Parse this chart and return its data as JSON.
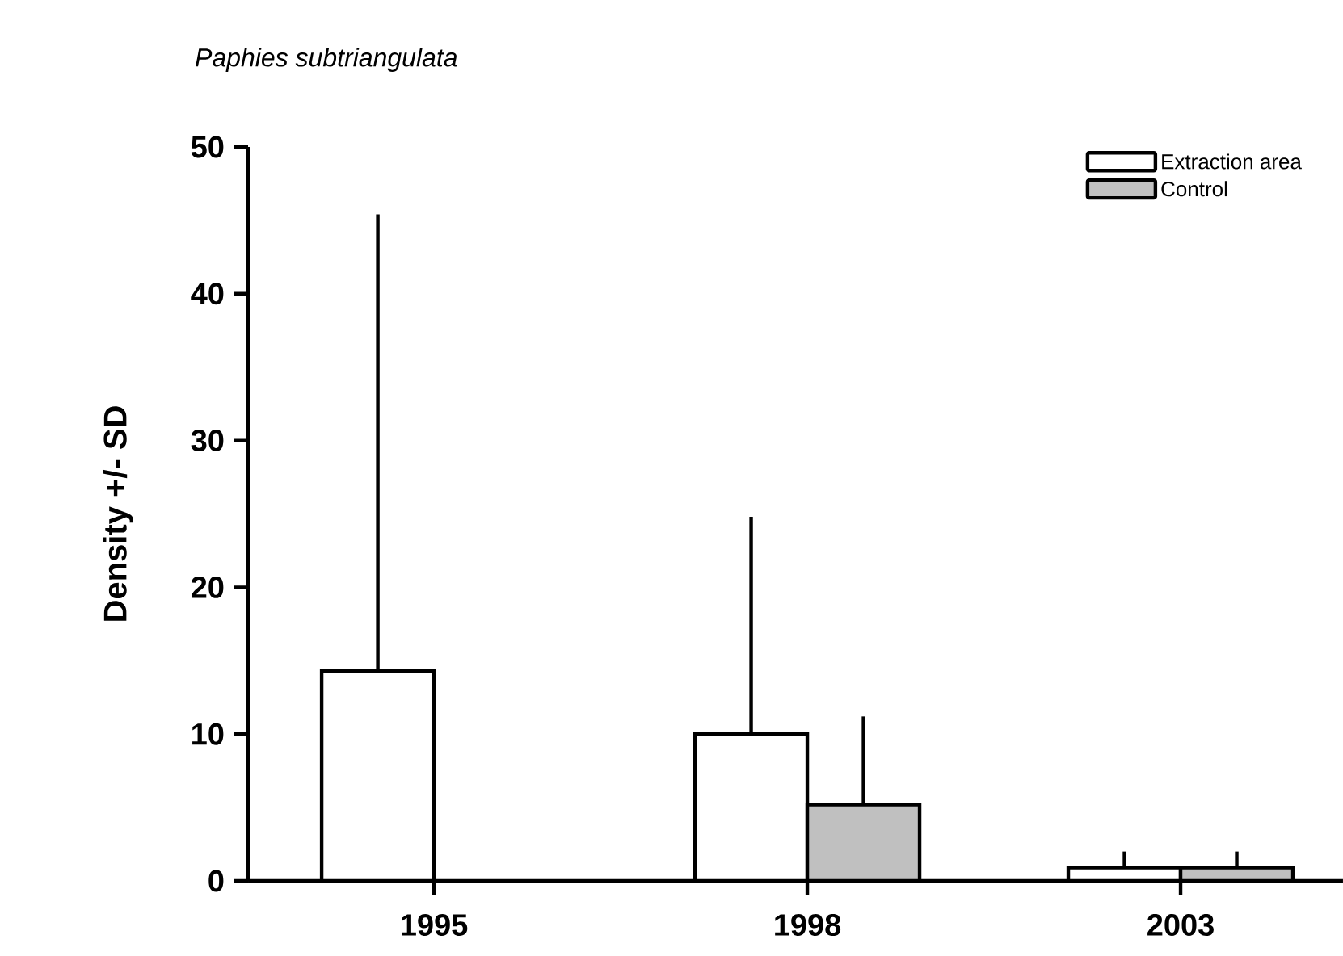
{
  "chart_data": {
    "type": "bar",
    "title": "Paphies subtriangulata",
    "ylabel": "Density +/- SD",
    "categories": [
      "1995",
      "1998",
      "2003"
    ],
    "series": [
      {
        "name": "Extraction area",
        "color": "#ffffff",
        "values": [
          14.3,
          10.0,
          0.9
        ],
        "errors": [
          [
            14.3,
            45.4
          ],
          [
            10.0,
            24.8
          ],
          [
            0.9,
            2.0
          ]
        ]
      },
      {
        "name": "Control",
        "color": "#c0c0c0",
        "values": [
          null,
          5.2,
          0.9
        ],
        "errors": [
          null,
          [
            5.2,
            11.2
          ],
          [
            0.9,
            2.0
          ]
        ]
      }
    ],
    "ylim": [
      0,
      50
    ],
    "yticks": [
      0,
      10,
      20,
      30,
      40,
      50
    ],
    "grid": false,
    "legend": "top right"
  }
}
